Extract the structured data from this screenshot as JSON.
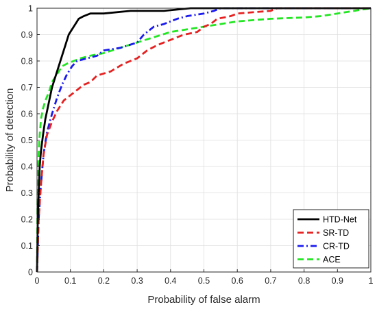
{
  "chart_data": {
    "type": "line",
    "title": "",
    "xlabel": "Probability of false alarm",
    "ylabel": "Probability of detection",
    "xlim": [
      0,
      1
    ],
    "ylim": [
      0,
      1
    ],
    "grid": true,
    "legend_position": "bottom-right",
    "x_ticks": [
      "0",
      "0.1",
      "0.2",
      "0.3",
      "0.4",
      "0.5",
      "0.6",
      "0.7",
      "0.8",
      "0.9",
      "1"
    ],
    "y_ticks": [
      "0",
      "0.1",
      "0.2",
      "0.3",
      "0.4",
      "0.5",
      "0.6",
      "0.7",
      "0.8",
      "0.9",
      "1"
    ],
    "series": [
      {
        "name": "HTD-Net",
        "color": "#000000",
        "style": "solid",
        "points": [
          [
            0,
            0
          ],
          [
            0.002,
            0.18
          ],
          [
            0.005,
            0.3
          ],
          [
            0.008,
            0.4
          ],
          [
            0.012,
            0.46
          ],
          [
            0.018,
            0.52
          ],
          [
            0.025,
            0.58
          ],
          [
            0.035,
            0.64
          ],
          [
            0.045,
            0.7
          ],
          [
            0.055,
            0.74
          ],
          [
            0.065,
            0.78
          ],
          [
            0.075,
            0.82
          ],
          [
            0.085,
            0.86
          ],
          [
            0.095,
            0.9
          ],
          [
            0.105,
            0.92
          ],
          [
            0.115,
            0.94
          ],
          [
            0.125,
            0.96
          ],
          [
            0.14,
            0.97
          ],
          [
            0.16,
            0.98
          ],
          [
            0.2,
            0.98
          ],
          [
            0.28,
            0.99
          ],
          [
            0.38,
            0.99
          ],
          [
            0.46,
            1.0
          ],
          [
            1.0,
            1.0
          ]
        ]
      },
      {
        "name": "SR-TD",
        "color": "#e62020",
        "style": "dashed",
        "points": [
          [
            0,
            0
          ],
          [
            0.005,
            0.2
          ],
          [
            0.01,
            0.3
          ],
          [
            0.015,
            0.38
          ],
          [
            0.02,
            0.45
          ],
          [
            0.03,
            0.52
          ],
          [
            0.045,
            0.57
          ],
          [
            0.06,
            0.61
          ],
          [
            0.08,
            0.65
          ],
          [
            0.1,
            0.67
          ],
          [
            0.12,
            0.69
          ],
          [
            0.14,
            0.71
          ],
          [
            0.16,
            0.72
          ],
          [
            0.18,
            0.745
          ],
          [
            0.22,
            0.76
          ],
          [
            0.26,
            0.79
          ],
          [
            0.3,
            0.81
          ],
          [
            0.33,
            0.84
          ],
          [
            0.36,
            0.86
          ],
          [
            0.4,
            0.88
          ],
          [
            0.44,
            0.9
          ],
          [
            0.48,
            0.91
          ],
          [
            0.5,
            0.93
          ],
          [
            0.52,
            0.94
          ],
          [
            0.54,
            0.96
          ],
          [
            0.58,
            0.97
          ],
          [
            0.6,
            0.98
          ],
          [
            0.7,
            0.99
          ],
          [
            0.72,
            1.0
          ],
          [
            1.0,
            1.0
          ]
        ]
      },
      {
        "name": "CR-TD",
        "color": "#1a1aee",
        "style": "dash-dot",
        "points": [
          [
            0,
            0
          ],
          [
            0.005,
            0.2
          ],
          [
            0.01,
            0.3
          ],
          [
            0.015,
            0.38
          ],
          [
            0.02,
            0.45
          ],
          [
            0.03,
            0.53
          ],
          [
            0.045,
            0.6
          ],
          [
            0.06,
            0.66
          ],
          [
            0.075,
            0.71
          ],
          [
            0.09,
            0.75
          ],
          [
            0.105,
            0.78
          ],
          [
            0.12,
            0.8
          ],
          [
            0.15,
            0.81
          ],
          [
            0.18,
            0.82
          ],
          [
            0.2,
            0.84
          ],
          [
            0.25,
            0.85
          ],
          [
            0.3,
            0.87
          ],
          [
            0.32,
            0.9
          ],
          [
            0.35,
            0.93
          ],
          [
            0.38,
            0.94
          ],
          [
            0.4,
            0.95
          ],
          [
            0.42,
            0.96
          ],
          [
            0.45,
            0.97
          ],
          [
            0.5,
            0.98
          ],
          [
            0.53,
            0.99
          ],
          [
            0.55,
            1.0
          ],
          [
            1.0,
            1.0
          ]
        ]
      },
      {
        "name": "ACE",
        "color": "#22e622",
        "style": "dashed",
        "points": [
          [
            0,
            0
          ],
          [
            0.002,
            0.35
          ],
          [
            0.005,
            0.45
          ],
          [
            0.008,
            0.52
          ],
          [
            0.012,
            0.58
          ],
          [
            0.018,
            0.62
          ],
          [
            0.025,
            0.65
          ],
          [
            0.035,
            0.68
          ],
          [
            0.045,
            0.72
          ],
          [
            0.06,
            0.75
          ],
          [
            0.075,
            0.78
          ],
          [
            0.09,
            0.79
          ],
          [
            0.11,
            0.8
          ],
          [
            0.13,
            0.81
          ],
          [
            0.16,
            0.82
          ],
          [
            0.2,
            0.83
          ],
          [
            0.25,
            0.85
          ],
          [
            0.3,
            0.87
          ],
          [
            0.35,
            0.89
          ],
          [
            0.4,
            0.91
          ],
          [
            0.45,
            0.92
          ],
          [
            0.5,
            0.93
          ],
          [
            0.55,
            0.94
          ],
          [
            0.6,
            0.95
          ],
          [
            0.7,
            0.96
          ],
          [
            0.8,
            0.965
          ],
          [
            0.85,
            0.97
          ],
          [
            0.9,
            0.98
          ],
          [
            0.95,
            0.99
          ],
          [
            1.0,
            1.0
          ]
        ]
      }
    ]
  }
}
